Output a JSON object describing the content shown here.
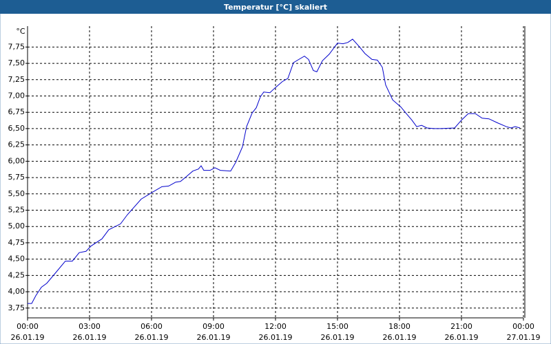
{
  "chart_data": {
    "type": "line",
    "title": "Temperatur [°C] skaliert",
    "y_unit": "°C",
    "x": [
      0,
      0.2,
      0.4,
      0.67,
      0.93,
      1.33,
      1.83,
      2.17,
      2.5,
      2.83,
      3.07,
      3.6,
      3.93,
      4.5,
      4.83,
      5.5,
      6.07,
      6.5,
      6.83,
      7.17,
      7.4,
      7.67,
      8.0,
      8.27,
      8.4,
      8.53,
      8.83,
      9.07,
      9.33,
      9.83,
      10.07,
      10.4,
      10.6,
      10.87,
      11.07,
      11.27,
      11.43,
      11.73,
      11.93,
      12.33,
      12.6,
      12.87,
      13.13,
      13.4,
      13.6,
      13.83,
      14.0,
      14.27,
      14.6,
      15.0,
      15.27,
      15.5,
      15.73,
      16.07,
      16.33,
      16.67,
      16.93,
      17.17,
      17.33,
      17.67,
      18.07,
      18.33,
      18.6,
      18.83,
      19.07,
      19.33,
      19.67,
      20.0,
      20.67,
      21.0,
      21.33,
      21.67,
      22.0,
      22.33,
      22.73,
      23.17,
      23.4,
      23.6,
      23.83
    ],
    "series": [
      {
        "color": "#0000cc",
        "values": [
          3.82,
          3.82,
          3.94,
          4.07,
          4.13,
          4.28,
          4.47,
          4.47,
          4.6,
          4.62,
          4.7,
          4.81,
          4.95,
          5.04,
          5.18,
          5.42,
          5.53,
          5.61,
          5.62,
          5.68,
          5.69,
          5.76,
          5.85,
          5.88,
          5.93,
          5.86,
          5.86,
          5.9,
          5.86,
          5.85,
          5.98,
          6.22,
          6.53,
          6.74,
          6.82,
          6.99,
          7.06,
          7.05,
          7.11,
          7.22,
          7.27,
          7.51,
          7.56,
          7.61,
          7.56,
          7.39,
          7.37,
          7.54,
          7.64,
          7.81,
          7.8,
          7.82,
          7.87,
          7.75,
          7.65,
          7.56,
          7.55,
          7.44,
          7.17,
          6.94,
          6.83,
          6.73,
          6.63,
          6.53,
          6.55,
          6.51,
          6.5,
          6.5,
          6.51,
          6.63,
          6.73,
          6.73,
          6.66,
          6.65,
          6.59,
          6.53,
          6.51,
          6.53,
          6.51
        ]
      }
    ],
    "xlim": [
      0,
      24
    ],
    "xticks": [
      {
        "value": 0,
        "label": "00:00"
      },
      {
        "value": 3,
        "label": "03:00"
      },
      {
        "value": 6,
        "label": "06:00"
      },
      {
        "value": 9,
        "label": "09:00"
      },
      {
        "value": 12,
        "label": "12:00"
      },
      {
        "value": 15,
        "label": "15:00"
      },
      {
        "value": 18,
        "label": "18:00"
      },
      {
        "value": 21,
        "label": "21:00"
      },
      {
        "value": 24,
        "label": "00:00"
      }
    ],
    "xtick_dates": [
      "26.01.19",
      "26.01.19",
      "26.01.19",
      "26.01.19",
      "26.01.19",
      "26.01.19",
      "26.01.19",
      "26.01.19",
      "27.01.19"
    ],
    "ylim": [
      3.6,
      8.07
    ],
    "yticks": [
      {
        "value": 3.75,
        "label": "3,75"
      },
      {
        "value": 4,
        "label": "4,00"
      },
      {
        "value": 4.25,
        "label": "4,25"
      },
      {
        "value": 4.5,
        "label": "4,50"
      },
      {
        "value": 4.75,
        "label": "4,75"
      },
      {
        "value": 5,
        "label": "5,00"
      },
      {
        "value": 5.25,
        "label": "5,25"
      },
      {
        "value": 5.5,
        "label": "5,50"
      },
      {
        "value": 5.75,
        "label": "5,75"
      },
      {
        "value": 6,
        "label": "6,00"
      },
      {
        "value": 6.25,
        "label": "6,25"
      },
      {
        "value": 6.5,
        "label": "6,50"
      },
      {
        "value": 6.75,
        "label": "6,75"
      },
      {
        "value": 7,
        "label": "7,00"
      },
      {
        "value": 7.25,
        "label": "7,25"
      },
      {
        "value": 7.5,
        "label": "7,50"
      },
      {
        "value": 7.75,
        "label": "7,75"
      }
    ],
    "grid": true
  }
}
